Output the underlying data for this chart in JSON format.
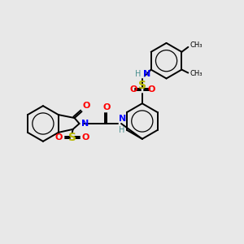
{
  "bg_color": "#e8e8e8",
  "atom_colors": {
    "C": "#000000",
    "N": "#0000ff",
    "O": "#ff0000",
    "S": "#b8b800",
    "H": "#4a9090"
  },
  "bond_color": "#000000",
  "font_size": 8,
  "fig_size": [
    3.0,
    3.0
  ],
  "dpi": 100
}
